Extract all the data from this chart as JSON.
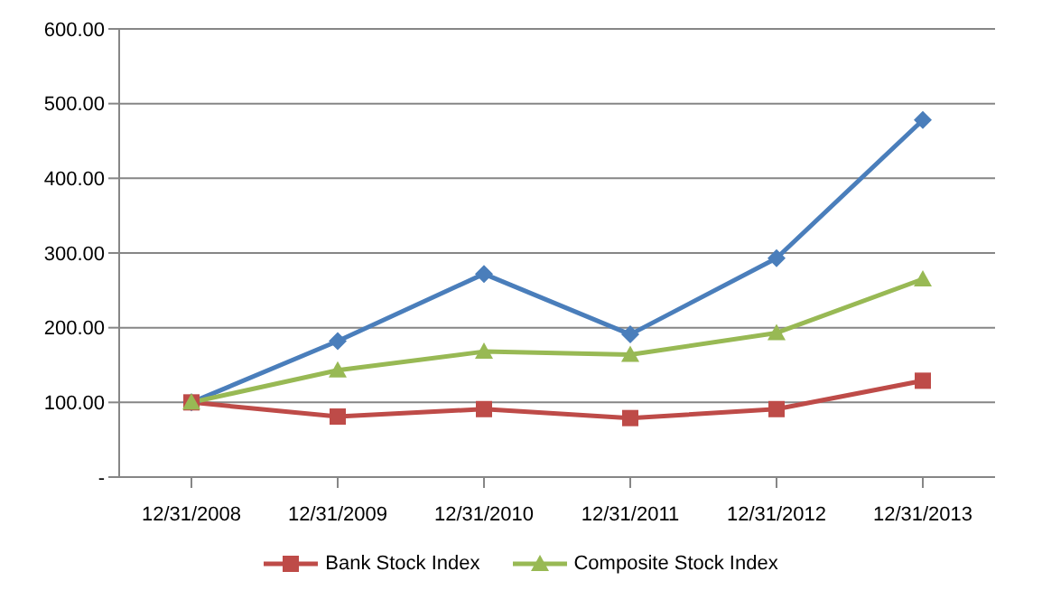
{
  "chart_data": {
    "type": "line",
    "categories": [
      "12/31/2008",
      "12/31/2009",
      "12/31/2010",
      "12/31/2011",
      "12/31/2012",
      "12/31/2013"
    ],
    "series": [
      {
        "color": "#4a7ebb",
        "marker": "diamond",
        "values": [
          100,
          182,
          272,
          191,
          293,
          478
        ]
      },
      {
        "name": "Bank Stock Index",
        "color": "#be4b48",
        "marker": "square",
        "values": [
          100,
          81,
          91,
          79,
          91,
          129
        ]
      },
      {
        "name": "Composite Stock Index",
        "color": "#98b954",
        "marker": "triangle",
        "values": [
          100,
          143,
          168,
          164,
          193,
          265
        ]
      }
    ],
    "ylim": [
      0,
      600
    ],
    "yticks": [
      {
        "value": 0,
        "label": "-"
      },
      {
        "value": 100,
        "label": "100.00"
      },
      {
        "value": 200,
        "label": "200.00"
      },
      {
        "value": 300,
        "label": "300.00"
      },
      {
        "value": 400,
        "label": "400.00"
      },
      {
        "value": 500,
        "label": "500.00"
      },
      {
        "value": 600,
        "label": "600.00"
      }
    ],
    "grid": "y",
    "legend": "bottom",
    "line_style": "solid"
  }
}
